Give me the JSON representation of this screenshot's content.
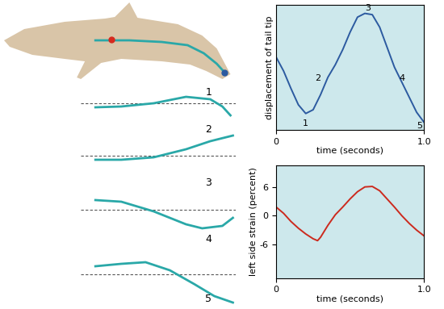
{
  "diagram": {
    "labels": [
      "1",
      "2",
      "3",
      "4",
      "5"
    ]
  },
  "chart_data": [
    {
      "type": "line",
      "xlabel": "time (seconds)",
      "ylabel": "displacement of tail tip",
      "x": [
        0,
        0.05,
        0.1,
        0.15,
        0.2,
        0.25,
        0.3,
        0.35,
        0.4,
        0.45,
        0.5,
        0.55,
        0.6,
        0.65,
        0.7,
        0.75,
        0.8,
        0.85,
        0.9,
        0.95,
        1.0
      ],
      "values": [
        0.58,
        0.47,
        0.33,
        0.2,
        0.13,
        0.16,
        0.28,
        0.42,
        0.52,
        0.64,
        0.78,
        0.9,
        0.93,
        0.92,
        0.82,
        0.66,
        0.5,
        0.38,
        0.26,
        0.14,
        0.06
      ],
      "color": "#2c5aa0",
      "xlim": [
        0,
        1.0
      ],
      "xticks": [
        0,
        {
          "value": 1.0,
          "label": "1.0"
        }
      ],
      "ylim": [
        0,
        1.0
      ],
      "tick_labels": "x",
      "annotations": [
        {
          "x": 0.2,
          "y": 0.05,
          "text": "1"
        },
        {
          "x": 0.28,
          "y": 0.41,
          "text": "2"
        },
        {
          "x": 0.62,
          "y": 0.97,
          "text": "3"
        },
        {
          "x": 0.85,
          "y": 0.41,
          "text": "4"
        },
        {
          "x": 0.97,
          "y": 0.03,
          "text": "5"
        }
      ]
    },
    {
      "type": "line",
      "xlabel": "time (seconds)",
      "ylabel": "left side strain (percent)",
      "x": [
        0,
        0.05,
        0.1,
        0.15,
        0.2,
        0.25,
        0.28,
        0.3,
        0.35,
        0.4,
        0.45,
        0.5,
        0.55,
        0.6,
        0.65,
        0.7,
        0.75,
        0.8,
        0.85,
        0.9,
        0.95,
        1.0
      ],
      "values": [
        1.8,
        0.5,
        -1.2,
        -2.6,
        -3.8,
        -4.8,
        -5.2,
        -4.5,
        -2.0,
        0.2,
        1.8,
        3.5,
        5.0,
        6.0,
        6.1,
        5.2,
        3.5,
        1.8,
        0.0,
        -1.6,
        -3.0,
        -4.2
      ],
      "color": "#cc2a1e",
      "xlim": [
        0,
        1.0
      ],
      "xticks": [
        0,
        {
          "value": 1.0,
          "label": "1.0"
        }
      ],
      "ylim": [
        -13,
        10.5
      ],
      "yticks": [
        -6,
        0,
        6
      ]
    }
  ]
}
